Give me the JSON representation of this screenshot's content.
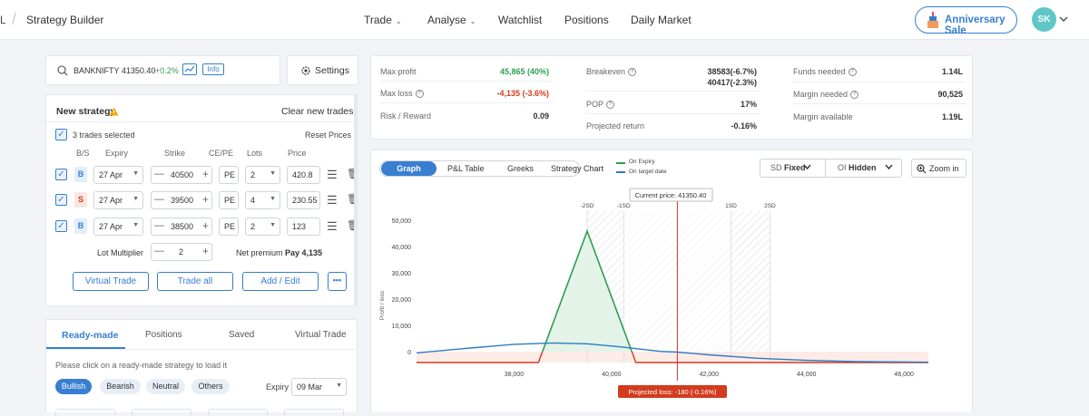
{
  "header": {
    "brand_fragment": "L",
    "title": "Strategy Builder",
    "nav": [
      "Trade",
      "Analyse",
      "Watchlist",
      "Positions",
      "Daily Market"
    ],
    "anniversary": "Anniversary Sale",
    "avatar": "SK"
  },
  "search": {
    "symbol": "BANKNIFTY 41350.40",
    "change": "+0.2%",
    "info": "Info",
    "settings": "Settings"
  },
  "strategy": {
    "title": "New strategy",
    "clear": "Clear new trades",
    "trades_selected": "3 trades selected",
    "reset": "Reset Prices",
    "columns": [
      "B/S",
      "Expiry",
      "Strike",
      "CE/PE",
      "Lots",
      "Price"
    ],
    "rows": [
      {
        "side": "B",
        "expiry": "27 Apr",
        "strike": "40500",
        "type": "PE",
        "lots": "2",
        "price": "420.8"
      },
      {
        "side": "S",
        "expiry": "27 Apr",
        "strike": "39500",
        "type": "PE",
        "lots": "4",
        "price": "230.55"
      },
      {
        "side": "B",
        "expiry": "27 Apr",
        "strike": "38500",
        "type": "PE",
        "lots": "2",
        "price": "123"
      }
    ],
    "lot_multiplier_label": "Lot Multiplier",
    "lot_multiplier": "2",
    "net_premium_label": "Net premium",
    "net_premium": "Pay 4,135",
    "buttons": [
      "Virtual Trade",
      "Trade all",
      "Add / Edit"
    ],
    "more": "•••"
  },
  "readymade": {
    "tabs": [
      "Ready-made",
      "Positions",
      "Saved",
      "Virtual Trade"
    ],
    "hint": "Please click on a ready-made strategy to load it",
    "filters": [
      "Bullish",
      "Bearish",
      "Neutral",
      "Others"
    ],
    "expiry_label": "Expiry",
    "expiry": "09 Mar"
  },
  "stats": {
    "max_profit_label": "Max profit",
    "max_profit": "45,865 (40%)",
    "max_loss_label": "Max loss",
    "max_loss": "-4,135 (-3.6%)",
    "rr_label": "Risk / Reward",
    "rr": "0.09",
    "breakeven_label": "Breakeven",
    "breakeven_1": "38583(-6.7%)",
    "breakeven_2": "40417(-2.3%)",
    "pop_label": "POP",
    "pop": "17%",
    "proj_return_label": "Projected return",
    "proj_return": "-0.16%",
    "funds_label": "Funds needed",
    "funds": "1.14L",
    "margin_needed_label": "Margin needed",
    "margin_needed": "90,525",
    "margin_avail_label": "Margin available",
    "margin_avail": "1.19L",
    "colors": {
      "profit": "#2e9e4f",
      "loss": "#d23b1e"
    }
  },
  "graph_panel": {
    "tabs": [
      "Graph",
      "P&L Table",
      "Greeks",
      "Strategy Chart"
    ],
    "legend": [
      "On Expiry",
      "On target date"
    ],
    "sd_label": "SD",
    "sd_value": "Fixed",
    "oi_label": "OI",
    "oi_value": "Hidden",
    "zoom": "Zoom in",
    "current_price": "Current price: 41350.40",
    "sd_markers": [
      "-2SD",
      "-1SD",
      "1SD",
      "2SD"
    ],
    "projected_loss": "Projected loss: -180 (-0.16%)"
  },
  "chart_data": {
    "type": "line",
    "ylabel": "Profit / loss",
    "xlim": [
      36000,
      46500
    ],
    "ylim": [
      -4135,
      50000
    ],
    "x_ticks": [
      "38,000",
      "40,000",
      "42,000",
      "44,000",
      "46,000"
    ],
    "y_ticks": [
      "50,000",
      "40,000",
      "30,000",
      "20,000",
      "10,000",
      "0"
    ],
    "series": [
      {
        "name": "On Expiry",
        "color": "#2e9e4f",
        "x": [
          36000,
          38500,
          39500,
          40500,
          46500
        ],
        "y": [
          -4135,
          -4135,
          45865,
          -4135,
          -4135
        ]
      },
      {
        "name": "On target date",
        "color": "#2f7bc4",
        "x": [
          36000,
          37000,
          38000,
          38800,
          39500,
          40200,
          41000,
          41350,
          42000,
          43000,
          44000,
          45000,
          46500
        ],
        "y": [
          -500,
          1200,
          2800,
          3300,
          3000,
          1800,
          100,
          -180,
          -1200,
          -2500,
          -3300,
          -3800,
          -4000
        ]
      }
    ],
    "current_price": 41350.4,
    "sd_levels": [
      39500,
      40250,
      42450,
      43250
    ]
  }
}
